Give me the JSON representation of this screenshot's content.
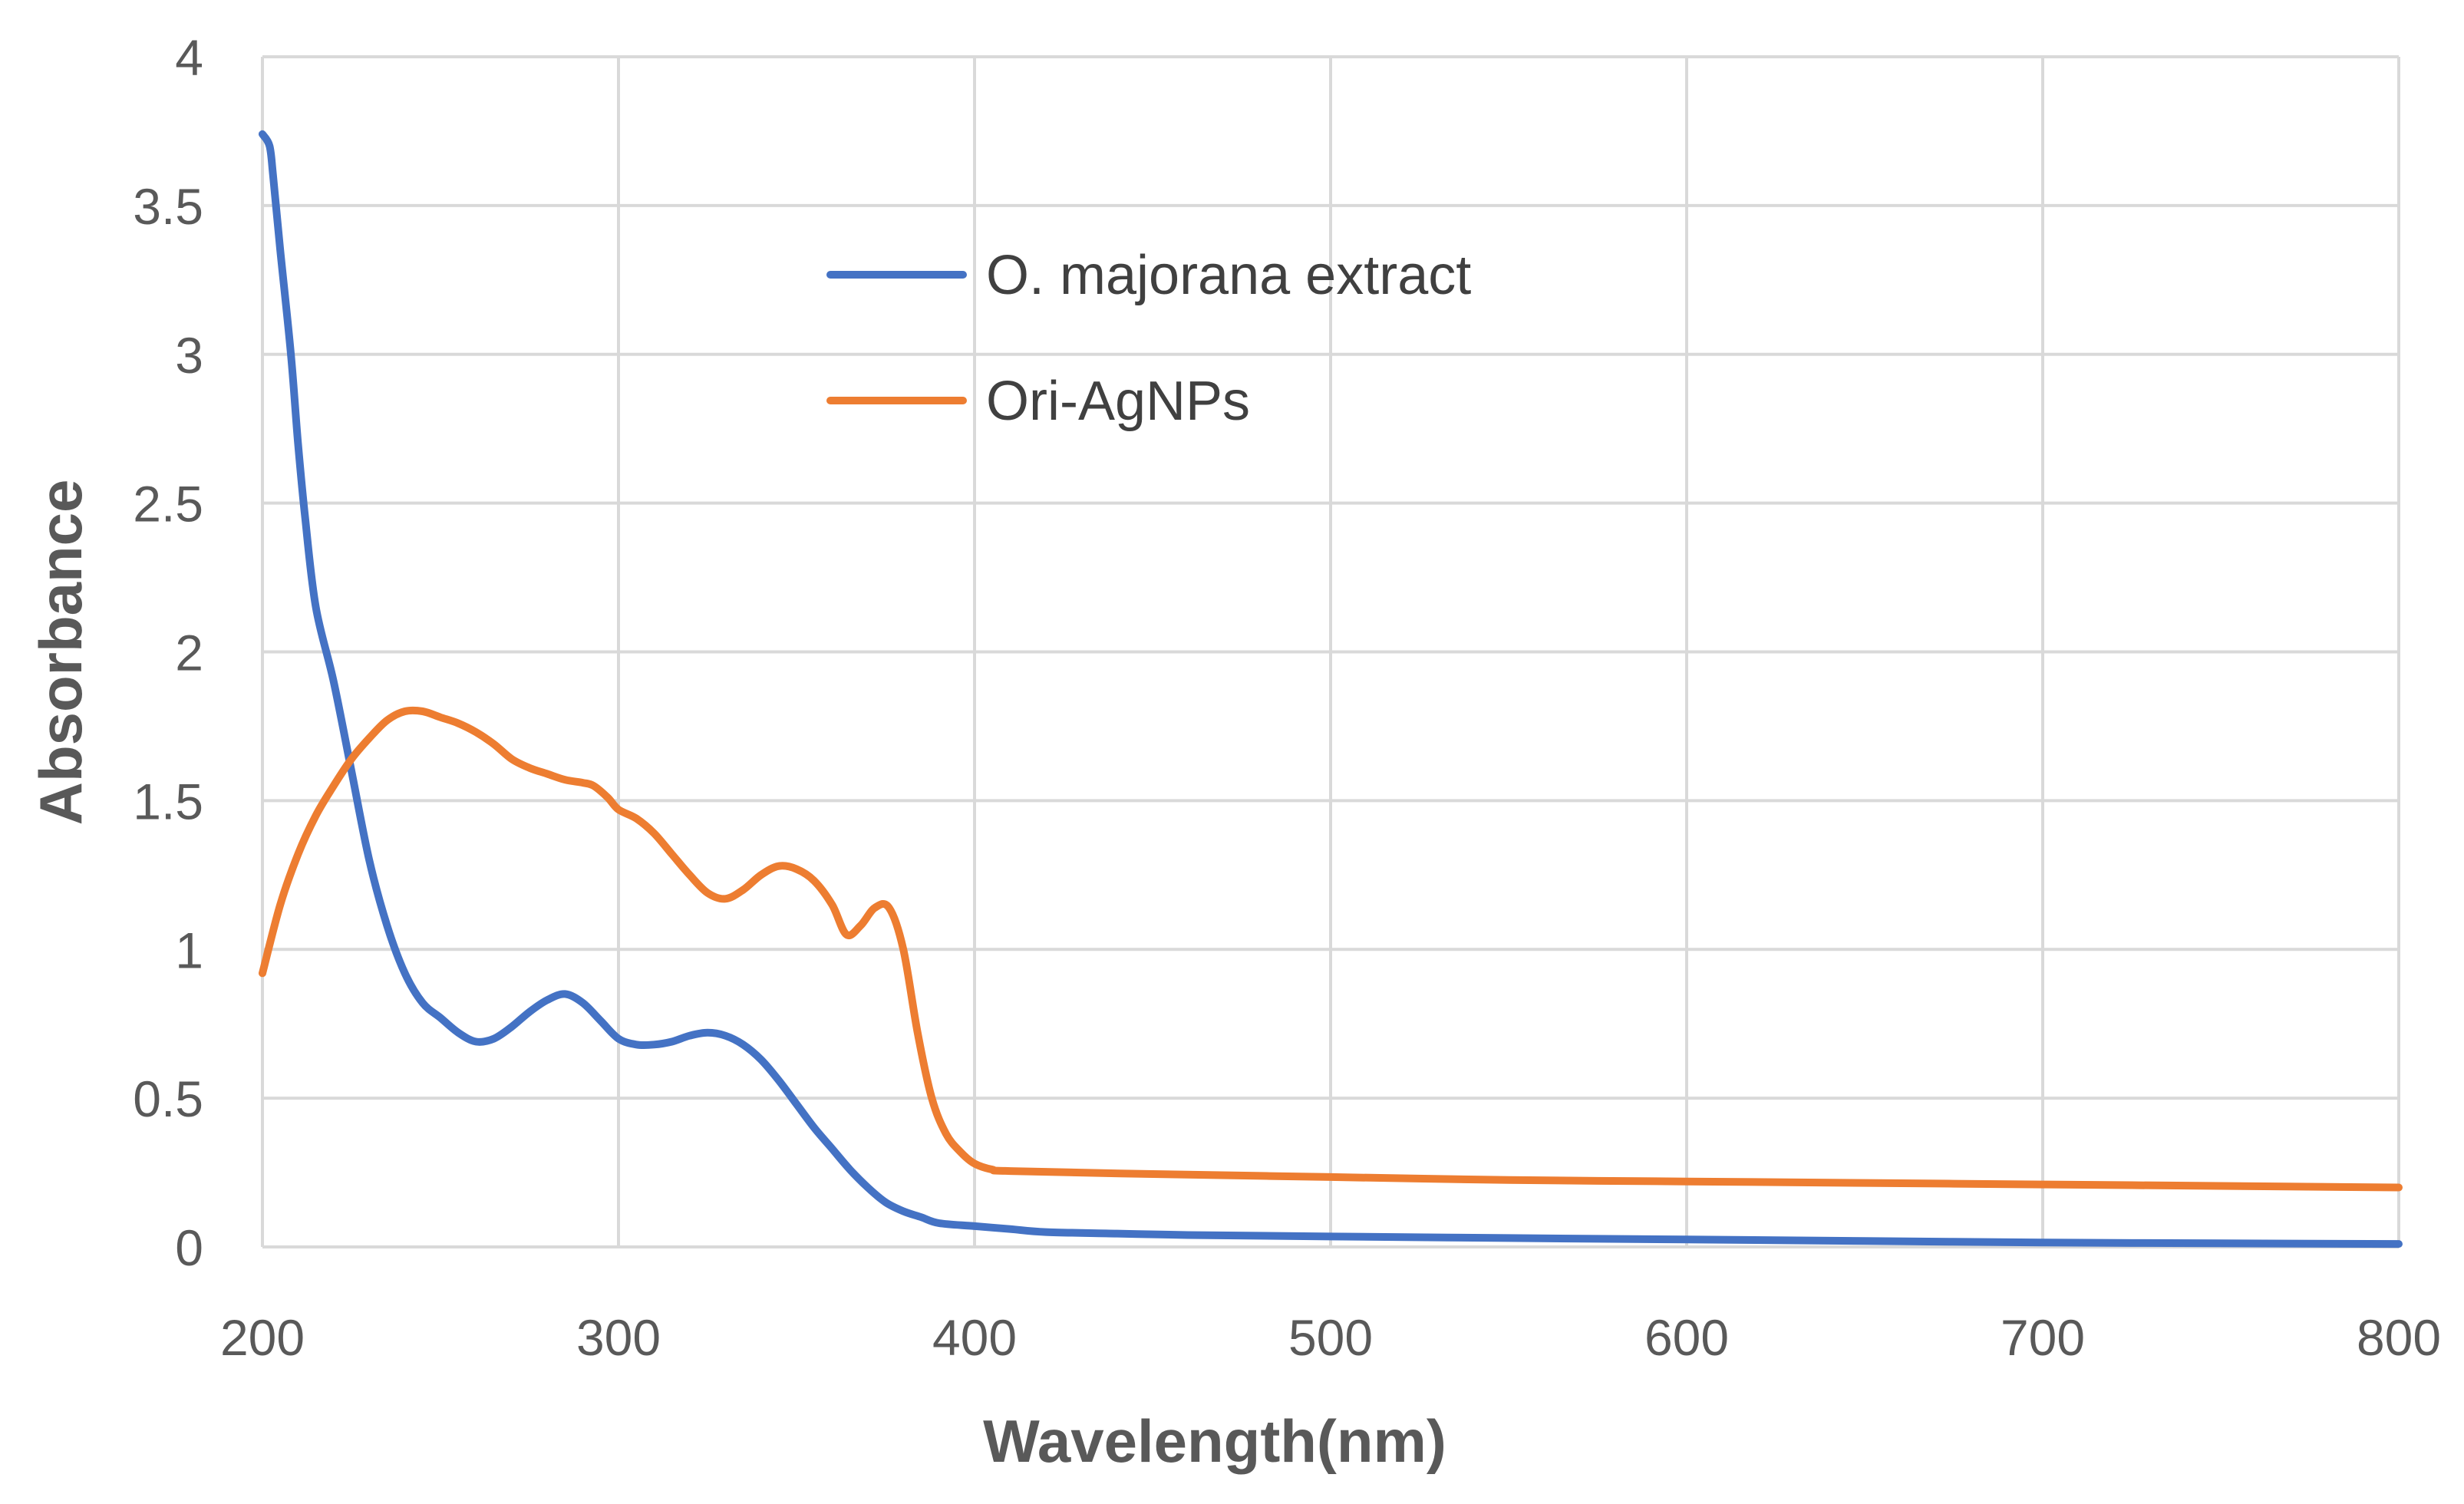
{
  "chart_data": {
    "type": "line",
    "title": "",
    "xlabel": "Wavelength(nm)",
    "ylabel": "Absorbance",
    "xlim": [
      200,
      800
    ],
    "ylim": [
      0,
      4
    ],
    "x_ticks": [
      200,
      300,
      400,
      500,
      600,
      700,
      800
    ],
    "y_ticks": [
      0,
      0.5,
      1,
      1.5,
      2,
      2.5,
      3,
      3.5,
      4
    ],
    "x_tick_labels": [
      "200",
      "300",
      "400",
      "500",
      "600",
      "700",
      "800"
    ],
    "y_tick_labels": [
      "0",
      "0.5",
      "1",
      "1.5",
      "2",
      "2.5",
      "3",
      "3.5",
      "4"
    ],
    "grid": true,
    "legend_position": "top-center",
    "series": [
      {
        "name": "O. majorana extract",
        "color": "#4472c4",
        "points": [
          [
            200,
            3.74
          ],
          [
            202,
            3.7
          ],
          [
            203,
            3.6
          ],
          [
            205,
            3.35
          ],
          [
            208,
            3.0
          ],
          [
            210,
            2.7
          ],
          [
            212,
            2.45
          ],
          [
            215,
            2.15
          ],
          [
            220,
            1.9
          ],
          [
            225,
            1.6
          ],
          [
            230,
            1.3
          ],
          [
            235,
            1.08
          ],
          [
            240,
            0.92
          ],
          [
            245,
            0.82
          ],
          [
            250,
            0.77
          ],
          [
            255,
            0.72
          ],
          [
            260,
            0.69
          ],
          [
            265,
            0.7
          ],
          [
            270,
            0.74
          ],
          [
            275,
            0.79
          ],
          [
            280,
            0.83
          ],
          [
            285,
            0.85
          ],
          [
            290,
            0.82
          ],
          [
            295,
            0.76
          ],
          [
            300,
            0.7
          ],
          [
            305,
            0.68
          ],
          [
            310,
            0.68
          ],
          [
            315,
            0.69
          ],
          [
            320,
            0.71
          ],
          [
            325,
            0.72
          ],
          [
            330,
            0.71
          ],
          [
            335,
            0.68
          ],
          [
            340,
            0.63
          ],
          [
            345,
            0.56
          ],
          [
            350,
            0.48
          ],
          [
            355,
            0.4
          ],
          [
            360,
            0.33
          ],
          [
            365,
            0.26
          ],
          [
            370,
            0.2
          ],
          [
            375,
            0.15
          ],
          [
            380,
            0.12
          ],
          [
            385,
            0.1
          ],
          [
            390,
            0.08
          ],
          [
            400,
            0.07
          ],
          [
            410,
            0.06
          ],
          [
            420,
            0.05
          ],
          [
            440,
            0.045
          ],
          [
            460,
            0.04
          ],
          [
            500,
            0.035
          ],
          [
            550,
            0.03
          ],
          [
            600,
            0.025
          ],
          [
            650,
            0.02
          ],
          [
            700,
            0.015
          ],
          [
            750,
            0.012
          ],
          [
            800,
            0.01
          ]
        ]
      },
      {
        "name": "Ori-AgNPs",
        "color": "#ed7d31",
        "points": [
          [
            200,
            0.92
          ],
          [
            205,
            1.15
          ],
          [
            210,
            1.32
          ],
          [
            215,
            1.45
          ],
          [
            220,
            1.55
          ],
          [
            225,
            1.64
          ],
          [
            230,
            1.71
          ],
          [
            235,
            1.77
          ],
          [
            240,
            1.8
          ],
          [
            245,
            1.8
          ],
          [
            250,
            1.78
          ],
          [
            255,
            1.76
          ],
          [
            260,
            1.73
          ],
          [
            265,
            1.69
          ],
          [
            270,
            1.64
          ],
          [
            275,
            1.61
          ],
          [
            280,
            1.59
          ],
          [
            285,
            1.57
          ],
          [
            290,
            1.56
          ],
          [
            293,
            1.55
          ],
          [
            297,
            1.51
          ],
          [
            300,
            1.47
          ],
          [
            305,
            1.44
          ],
          [
            310,
            1.39
          ],
          [
            315,
            1.32
          ],
          [
            320,
            1.25
          ],
          [
            325,
            1.19
          ],
          [
            330,
            1.17
          ],
          [
            335,
            1.2
          ],
          [
            340,
            1.25
          ],
          [
            345,
            1.28
          ],
          [
            350,
            1.27
          ],
          [
            355,
            1.23
          ],
          [
            360,
            1.15
          ],
          [
            364,
            1.05
          ],
          [
            368,
            1.08
          ],
          [
            372,
            1.14
          ],
          [
            376,
            1.14
          ],
          [
            380,
            1.0
          ],
          [
            384,
            0.72
          ],
          [
            388,
            0.5
          ],
          [
            392,
            0.38
          ],
          [
            396,
            0.32
          ],
          [
            400,
            0.28
          ],
          [
            405,
            0.26
          ],
          [
            410,
            0.255
          ],
          [
            450,
            0.245
          ],
          [
            500,
            0.235
          ],
          [
            550,
            0.225
          ],
          [
            600,
            0.22
          ],
          [
            650,
            0.215
          ],
          [
            700,
            0.21
          ],
          [
            750,
            0.205
          ],
          [
            800,
            0.2
          ]
        ]
      }
    ]
  }
}
